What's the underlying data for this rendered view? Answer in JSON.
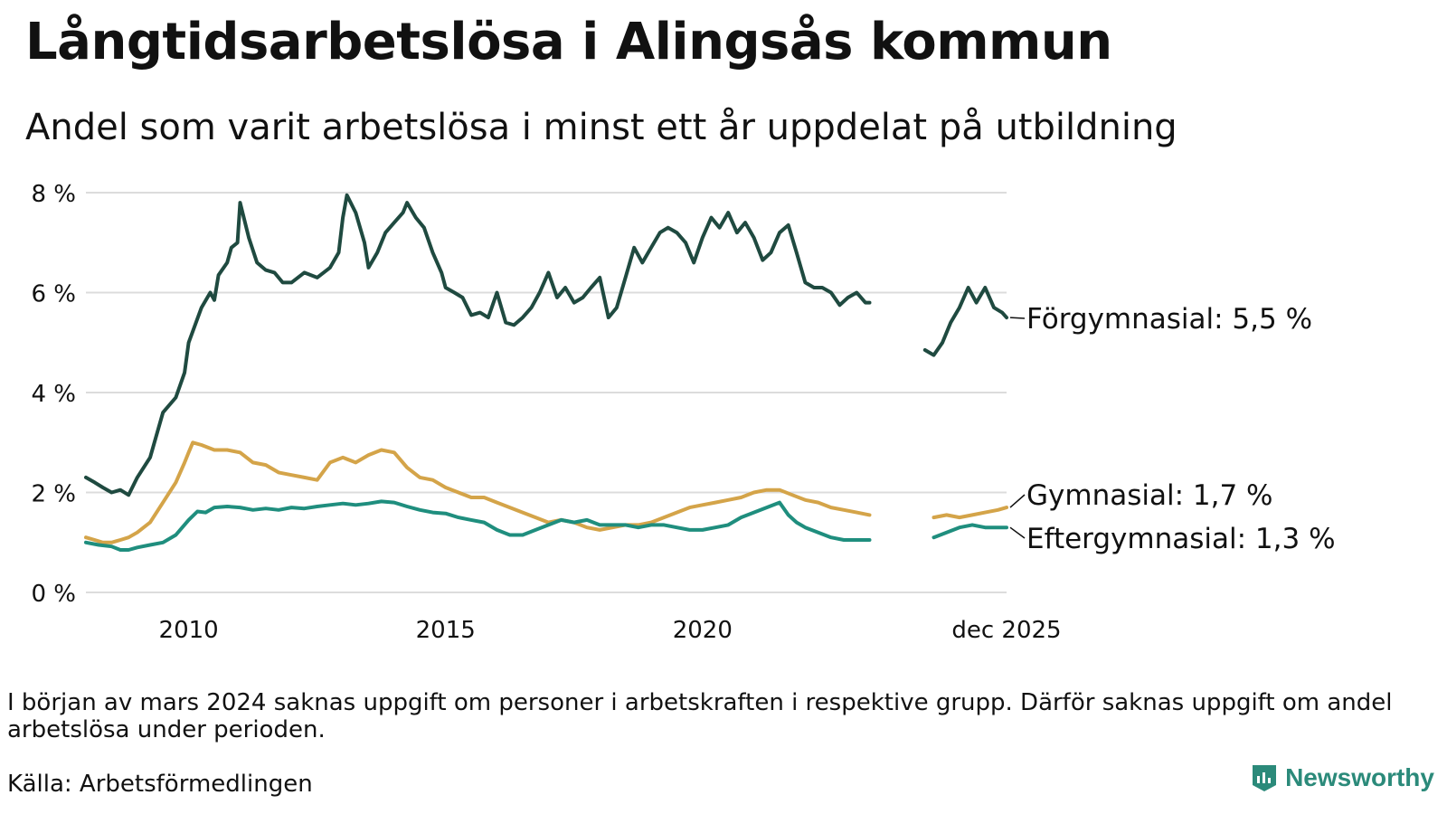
{
  "title": "Långtidsarbetslösa i Alingsås kommun",
  "subtitle": "Andel som varit arbetslösa i minst ett år uppdelat på utbildning",
  "footnote": "I början av mars 2024 saknas uppgift om personer i arbetskraften i respektive grupp. Därför saknas uppgift om andel arbetslösa under perioden.",
  "source": "Källa: Arbetsförmedlingen",
  "brand": "Newsworthy",
  "chart_data": {
    "type": "line",
    "x_unit": "year (decimal)",
    "xlim": [
      2008.0,
      2025.917
    ],
    "ylim": [
      0,
      8
    ],
    "yticks": [
      0,
      2,
      4,
      6,
      8
    ],
    "ytick_labels": [
      "0 %",
      "2 %",
      "4 %",
      "6 %",
      "8 %"
    ],
    "xticks": [
      2010,
      2015,
      2020,
      2025.917
    ],
    "xtick_labels": [
      "2010",
      "2015",
      "2020",
      "dec 2025"
    ],
    "grid": true,
    "gap": [
      2023.75,
      2024.25
    ],
    "series": [
      {
        "name": "Förgymnasial",
        "label": "Förgymnasial: 5,5 %",
        "color": "#1f4a40",
        "points": [
          [
            2008.0,
            2.3
          ],
          [
            2008.17,
            2.2
          ],
          [
            2008.33,
            2.1
          ],
          [
            2008.5,
            2.0
          ],
          [
            2008.67,
            2.05
          ],
          [
            2008.83,
            1.95
          ],
          [
            2009.0,
            2.3
          ],
          [
            2009.25,
            2.7
          ],
          [
            2009.5,
            3.6
          ],
          [
            2009.75,
            3.9
          ],
          [
            2009.92,
            4.4
          ],
          [
            2010.0,
            5.0
          ],
          [
            2010.25,
            5.7
          ],
          [
            2010.42,
            6.0
          ],
          [
            2010.5,
            5.85
          ],
          [
            2010.58,
            6.35
          ],
          [
            2010.75,
            6.6
          ],
          [
            2010.83,
            6.9
          ],
          [
            2010.95,
            7.0
          ],
          [
            2011.0,
            7.8
          ],
          [
            2011.17,
            7.1
          ],
          [
            2011.33,
            6.6
          ],
          [
            2011.5,
            6.45
          ],
          [
            2011.67,
            6.4
          ],
          [
            2011.83,
            6.2
          ],
          [
            2012.0,
            6.2
          ],
          [
            2012.25,
            6.4
          ],
          [
            2012.5,
            6.3
          ],
          [
            2012.75,
            6.5
          ],
          [
            2012.92,
            6.8
          ],
          [
            2013.0,
            7.5
          ],
          [
            2013.08,
            7.95
          ],
          [
            2013.25,
            7.6
          ],
          [
            2013.42,
            7.0
          ],
          [
            2013.5,
            6.5
          ],
          [
            2013.67,
            6.8
          ],
          [
            2013.83,
            7.2
          ],
          [
            2014.0,
            7.4
          ],
          [
            2014.17,
            7.6
          ],
          [
            2014.25,
            7.8
          ],
          [
            2014.42,
            7.5
          ],
          [
            2014.58,
            7.3
          ],
          [
            2014.75,
            6.8
          ],
          [
            2014.92,
            6.4
          ],
          [
            2015.0,
            6.1
          ],
          [
            2015.17,
            6.0
          ],
          [
            2015.33,
            5.9
          ],
          [
            2015.5,
            5.55
          ],
          [
            2015.67,
            5.6
          ],
          [
            2015.83,
            5.5
          ],
          [
            2016.0,
            6.0
          ],
          [
            2016.17,
            5.4
          ],
          [
            2016.33,
            5.35
          ],
          [
            2016.5,
            5.5
          ],
          [
            2016.67,
            5.7
          ],
          [
            2016.83,
            6.0
          ],
          [
            2017.0,
            6.4
          ],
          [
            2017.17,
            5.9
          ],
          [
            2017.33,
            6.1
          ],
          [
            2017.5,
            5.8
          ],
          [
            2017.67,
            5.9
          ],
          [
            2017.83,
            6.1
          ],
          [
            2018.0,
            6.3
          ],
          [
            2018.17,
            5.5
          ],
          [
            2018.33,
            5.7
          ],
          [
            2018.5,
            6.3
          ],
          [
            2018.67,
            6.9
          ],
          [
            2018.83,
            6.6
          ],
          [
            2019.0,
            6.9
          ],
          [
            2019.17,
            7.2
          ],
          [
            2019.33,
            7.3
          ],
          [
            2019.5,
            7.2
          ],
          [
            2019.67,
            7.0
          ],
          [
            2019.83,
            6.6
          ],
          [
            2020.0,
            7.1
          ],
          [
            2020.17,
            7.5
          ],
          [
            2020.33,
            7.3
          ],
          [
            2020.5,
            7.6
          ],
          [
            2020.67,
            7.2
          ],
          [
            2020.83,
            7.4
          ],
          [
            2021.0,
            7.1
          ],
          [
            2021.17,
            6.65
          ],
          [
            2021.33,
            6.8
          ],
          [
            2021.5,
            7.2
          ],
          [
            2021.67,
            7.35
          ],
          [
            2021.83,
            6.8
          ],
          [
            2022.0,
            6.2
          ],
          [
            2022.17,
            6.1
          ],
          [
            2022.33,
            6.1
          ],
          [
            2022.5,
            6.0
          ],
          [
            2022.67,
            5.75
          ],
          [
            2022.83,
            5.9
          ],
          [
            2023.0,
            6.0
          ],
          [
            2023.17,
            5.8
          ],
          [
            2023.25,
            5.8
          ],
          [
            2024.33,
            4.85
          ],
          [
            2024.5,
            4.75
          ],
          [
            2024.67,
            5.0
          ],
          [
            2024.83,
            5.4
          ],
          [
            2025.0,
            5.7
          ],
          [
            2025.17,
            6.1
          ],
          [
            2025.33,
            5.8
          ],
          [
            2025.5,
            6.1
          ],
          [
            2025.67,
            5.7
          ],
          [
            2025.83,
            5.6
          ],
          [
            2025.917,
            5.5
          ]
        ]
      },
      {
        "name": "Gymnasial",
        "label": "Gymnasial: 1,7 %",
        "color": "#d4a449",
        "points": [
          [
            2008.0,
            1.1
          ],
          [
            2008.17,
            1.05
          ],
          [
            2008.33,
            1.0
          ],
          [
            2008.5,
            1.0
          ],
          [
            2008.67,
            1.05
          ],
          [
            2008.83,
            1.1
          ],
          [
            2009.0,
            1.2
          ],
          [
            2009.25,
            1.4
          ],
          [
            2009.5,
            1.8
          ],
          [
            2009.75,
            2.2
          ],
          [
            2009.92,
            2.6
          ],
          [
            2010.0,
            2.8
          ],
          [
            2010.08,
            3.0
          ],
          [
            2010.25,
            2.95
          ],
          [
            2010.5,
            2.85
          ],
          [
            2010.75,
            2.85
          ],
          [
            2011.0,
            2.8
          ],
          [
            2011.25,
            2.6
          ],
          [
            2011.5,
            2.55
          ],
          [
            2011.75,
            2.4
          ],
          [
            2012.0,
            2.35
          ],
          [
            2012.25,
            2.3
          ],
          [
            2012.5,
            2.25
          ],
          [
            2012.75,
            2.6
          ],
          [
            2013.0,
            2.7
          ],
          [
            2013.25,
            2.6
          ],
          [
            2013.5,
            2.75
          ],
          [
            2013.75,
            2.85
          ],
          [
            2014.0,
            2.8
          ],
          [
            2014.25,
            2.5
          ],
          [
            2014.5,
            2.3
          ],
          [
            2014.75,
            2.25
          ],
          [
            2015.0,
            2.1
          ],
          [
            2015.25,
            2.0
          ],
          [
            2015.5,
            1.9
          ],
          [
            2015.75,
            1.9
          ],
          [
            2016.0,
            1.8
          ],
          [
            2016.25,
            1.7
          ],
          [
            2016.5,
            1.6
          ],
          [
            2016.75,
            1.5
          ],
          [
            2017.0,
            1.4
          ],
          [
            2017.25,
            1.45
          ],
          [
            2017.5,
            1.4
          ],
          [
            2017.75,
            1.3
          ],
          [
            2018.0,
            1.25
          ],
          [
            2018.25,
            1.3
          ],
          [
            2018.5,
            1.35
          ],
          [
            2018.75,
            1.35
          ],
          [
            2019.0,
            1.4
          ],
          [
            2019.25,
            1.5
          ],
          [
            2019.5,
            1.6
          ],
          [
            2019.75,
            1.7
          ],
          [
            2020.0,
            1.75
          ],
          [
            2020.25,
            1.8
          ],
          [
            2020.5,
            1.85
          ],
          [
            2020.75,
            1.9
          ],
          [
            2021.0,
            2.0
          ],
          [
            2021.25,
            2.05
          ],
          [
            2021.5,
            2.05
          ],
          [
            2021.75,
            1.95
          ],
          [
            2022.0,
            1.85
          ],
          [
            2022.25,
            1.8
          ],
          [
            2022.5,
            1.7
          ],
          [
            2022.75,
            1.65
          ],
          [
            2023.0,
            1.6
          ],
          [
            2023.25,
            1.55
          ],
          [
            2024.25,
            1.55
          ],
          [
            2024.5,
            1.5
          ],
          [
            2024.75,
            1.55
          ],
          [
            2025.0,
            1.5
          ],
          [
            2025.25,
            1.55
          ],
          [
            2025.5,
            1.6
          ],
          [
            2025.75,
            1.65
          ],
          [
            2025.917,
            1.7
          ]
        ]
      },
      {
        "name": "Eftergymnasial",
        "label": "Eftergymnasial: 1,3 %",
        "color": "#1f8e7e",
        "points": [
          [
            2008.0,
            1.0
          ],
          [
            2008.25,
            0.95
          ],
          [
            2008.5,
            0.92
          ],
          [
            2008.67,
            0.85
          ],
          [
            2008.83,
            0.85
          ],
          [
            2009.0,
            0.9
          ],
          [
            2009.25,
            0.95
          ],
          [
            2009.5,
            1.0
          ],
          [
            2009.75,
            1.15
          ],
          [
            2010.0,
            1.45
          ],
          [
            2010.17,
            1.62
          ],
          [
            2010.33,
            1.6
          ],
          [
            2010.5,
            1.7
          ],
          [
            2010.75,
            1.72
          ],
          [
            2011.0,
            1.7
          ],
          [
            2011.25,
            1.65
          ],
          [
            2011.5,
            1.68
          ],
          [
            2011.75,
            1.65
          ],
          [
            2012.0,
            1.7
          ],
          [
            2012.25,
            1.68
          ],
          [
            2012.5,
            1.72
          ],
          [
            2012.75,
            1.75
          ],
          [
            2013.0,
            1.78
          ],
          [
            2013.25,
            1.75
          ],
          [
            2013.5,
            1.78
          ],
          [
            2013.75,
            1.82
          ],
          [
            2014.0,
            1.8
          ],
          [
            2014.25,
            1.72
          ],
          [
            2014.5,
            1.65
          ],
          [
            2014.75,
            1.6
          ],
          [
            2015.0,
            1.58
          ],
          [
            2015.25,
            1.5
          ],
          [
            2015.5,
            1.45
          ],
          [
            2015.75,
            1.4
          ],
          [
            2016.0,
            1.25
          ],
          [
            2016.25,
            1.15
          ],
          [
            2016.5,
            1.15
          ],
          [
            2016.75,
            1.25
          ],
          [
            2017.0,
            1.35
          ],
          [
            2017.25,
            1.45
          ],
          [
            2017.5,
            1.4
          ],
          [
            2017.75,
            1.45
          ],
          [
            2018.0,
            1.35
          ],
          [
            2018.25,
            1.35
          ],
          [
            2018.5,
            1.35
          ],
          [
            2018.75,
            1.3
          ],
          [
            2019.0,
            1.35
          ],
          [
            2019.25,
            1.35
          ],
          [
            2019.5,
            1.3
          ],
          [
            2019.75,
            1.25
          ],
          [
            2020.0,
            1.25
          ],
          [
            2020.25,
            1.3
          ],
          [
            2020.5,
            1.35
          ],
          [
            2020.75,
            1.5
          ],
          [
            2021.0,
            1.6
          ],
          [
            2021.25,
            1.7
          ],
          [
            2021.5,
            1.8
          ],
          [
            2021.67,
            1.55
          ],
          [
            2021.83,
            1.4
          ],
          [
            2022.0,
            1.3
          ],
          [
            2022.25,
            1.2
          ],
          [
            2022.5,
            1.1
          ],
          [
            2022.75,
            1.05
          ],
          [
            2023.0,
            1.05
          ],
          [
            2023.25,
            1.05
          ],
          [
            2024.25,
            1.2
          ],
          [
            2024.5,
            1.1
          ],
          [
            2024.75,
            1.2
          ],
          [
            2025.0,
            1.3
          ],
          [
            2025.25,
            1.35
          ],
          [
            2025.5,
            1.3
          ],
          [
            2025.75,
            1.3
          ],
          [
            2025.917,
            1.3
          ]
        ]
      }
    ]
  }
}
